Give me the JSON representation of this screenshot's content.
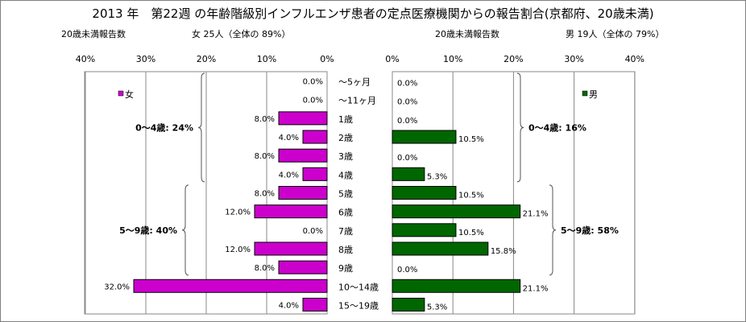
{
  "title": "2013 年　第22週 の年齢階級別インフルエンザ患者の定点医療機関からの報告割合(京都府、20歳未満)",
  "left_header": {
    "label": "20歳未満報告数",
    "summary": "女 25人（全体の 89%）"
  },
  "right_header": {
    "label": "20歳未満報告数",
    "summary": "男 19人（全体の 79%）"
  },
  "colors": {
    "female": "#cc00cc",
    "male": "#006600"
  },
  "chart_data": [
    {
      "type": "bar",
      "orientation": "horizontal",
      "direction": "right-to-left",
      "categories": [
        "～5ヶ月",
        "～11ヶ月",
        "1歳",
        "2歳",
        "3歳",
        "4歳",
        "5歳",
        "6歳",
        "7歳",
        "8歳",
        "9歳",
        "10～14歳",
        "15～19歳"
      ],
      "series": [
        {
          "name": "女",
          "values": [
            0.0,
            0.0,
            8.0,
            4.0,
            8.0,
            4.0,
            8.0,
            12.0,
            0.0,
            12.0,
            8.0,
            32.0,
            4.0
          ]
        }
      ],
      "xlim": [
        0,
        40
      ],
      "xticks": [
        "40%",
        "30%",
        "20%",
        "10%",
        "0%"
      ],
      "legend": "top-left",
      "grid": true,
      "annotations": [
        {
          "text": "0～4歳: 24%",
          "range": [
            "～5ヶ月",
            "4歳"
          ]
        },
        {
          "text": "5～9歳: 40%",
          "range": [
            "5歳",
            "9歳"
          ]
        }
      ]
    },
    {
      "type": "bar",
      "orientation": "horizontal",
      "direction": "left-to-right",
      "categories": [
        "～5ヶ月",
        "～11ヶ月",
        "1歳",
        "2歳",
        "3歳",
        "4歳",
        "5歳",
        "6歳",
        "7歳",
        "8歳",
        "9歳",
        "10～14歳",
        "15～19歳"
      ],
      "series": [
        {
          "name": "男",
          "values": [
            0.0,
            0.0,
            0.0,
            10.5,
            0.0,
            5.3,
            10.5,
            21.1,
            10.5,
            15.8,
            0.0,
            21.1,
            5.3
          ]
        }
      ],
      "xlim": [
        0,
        40
      ],
      "xticks": [
        "0%",
        "10%",
        "20%",
        "30%",
        "40%"
      ],
      "legend": "top-right",
      "grid": true,
      "annotations": [
        {
          "text": "0～4歳: 16%",
          "range": [
            "～5ヶ月",
            "4歳"
          ]
        },
        {
          "text": "5～9歳: 58%",
          "range": [
            "5歳",
            "9歳"
          ]
        }
      ]
    }
  ]
}
